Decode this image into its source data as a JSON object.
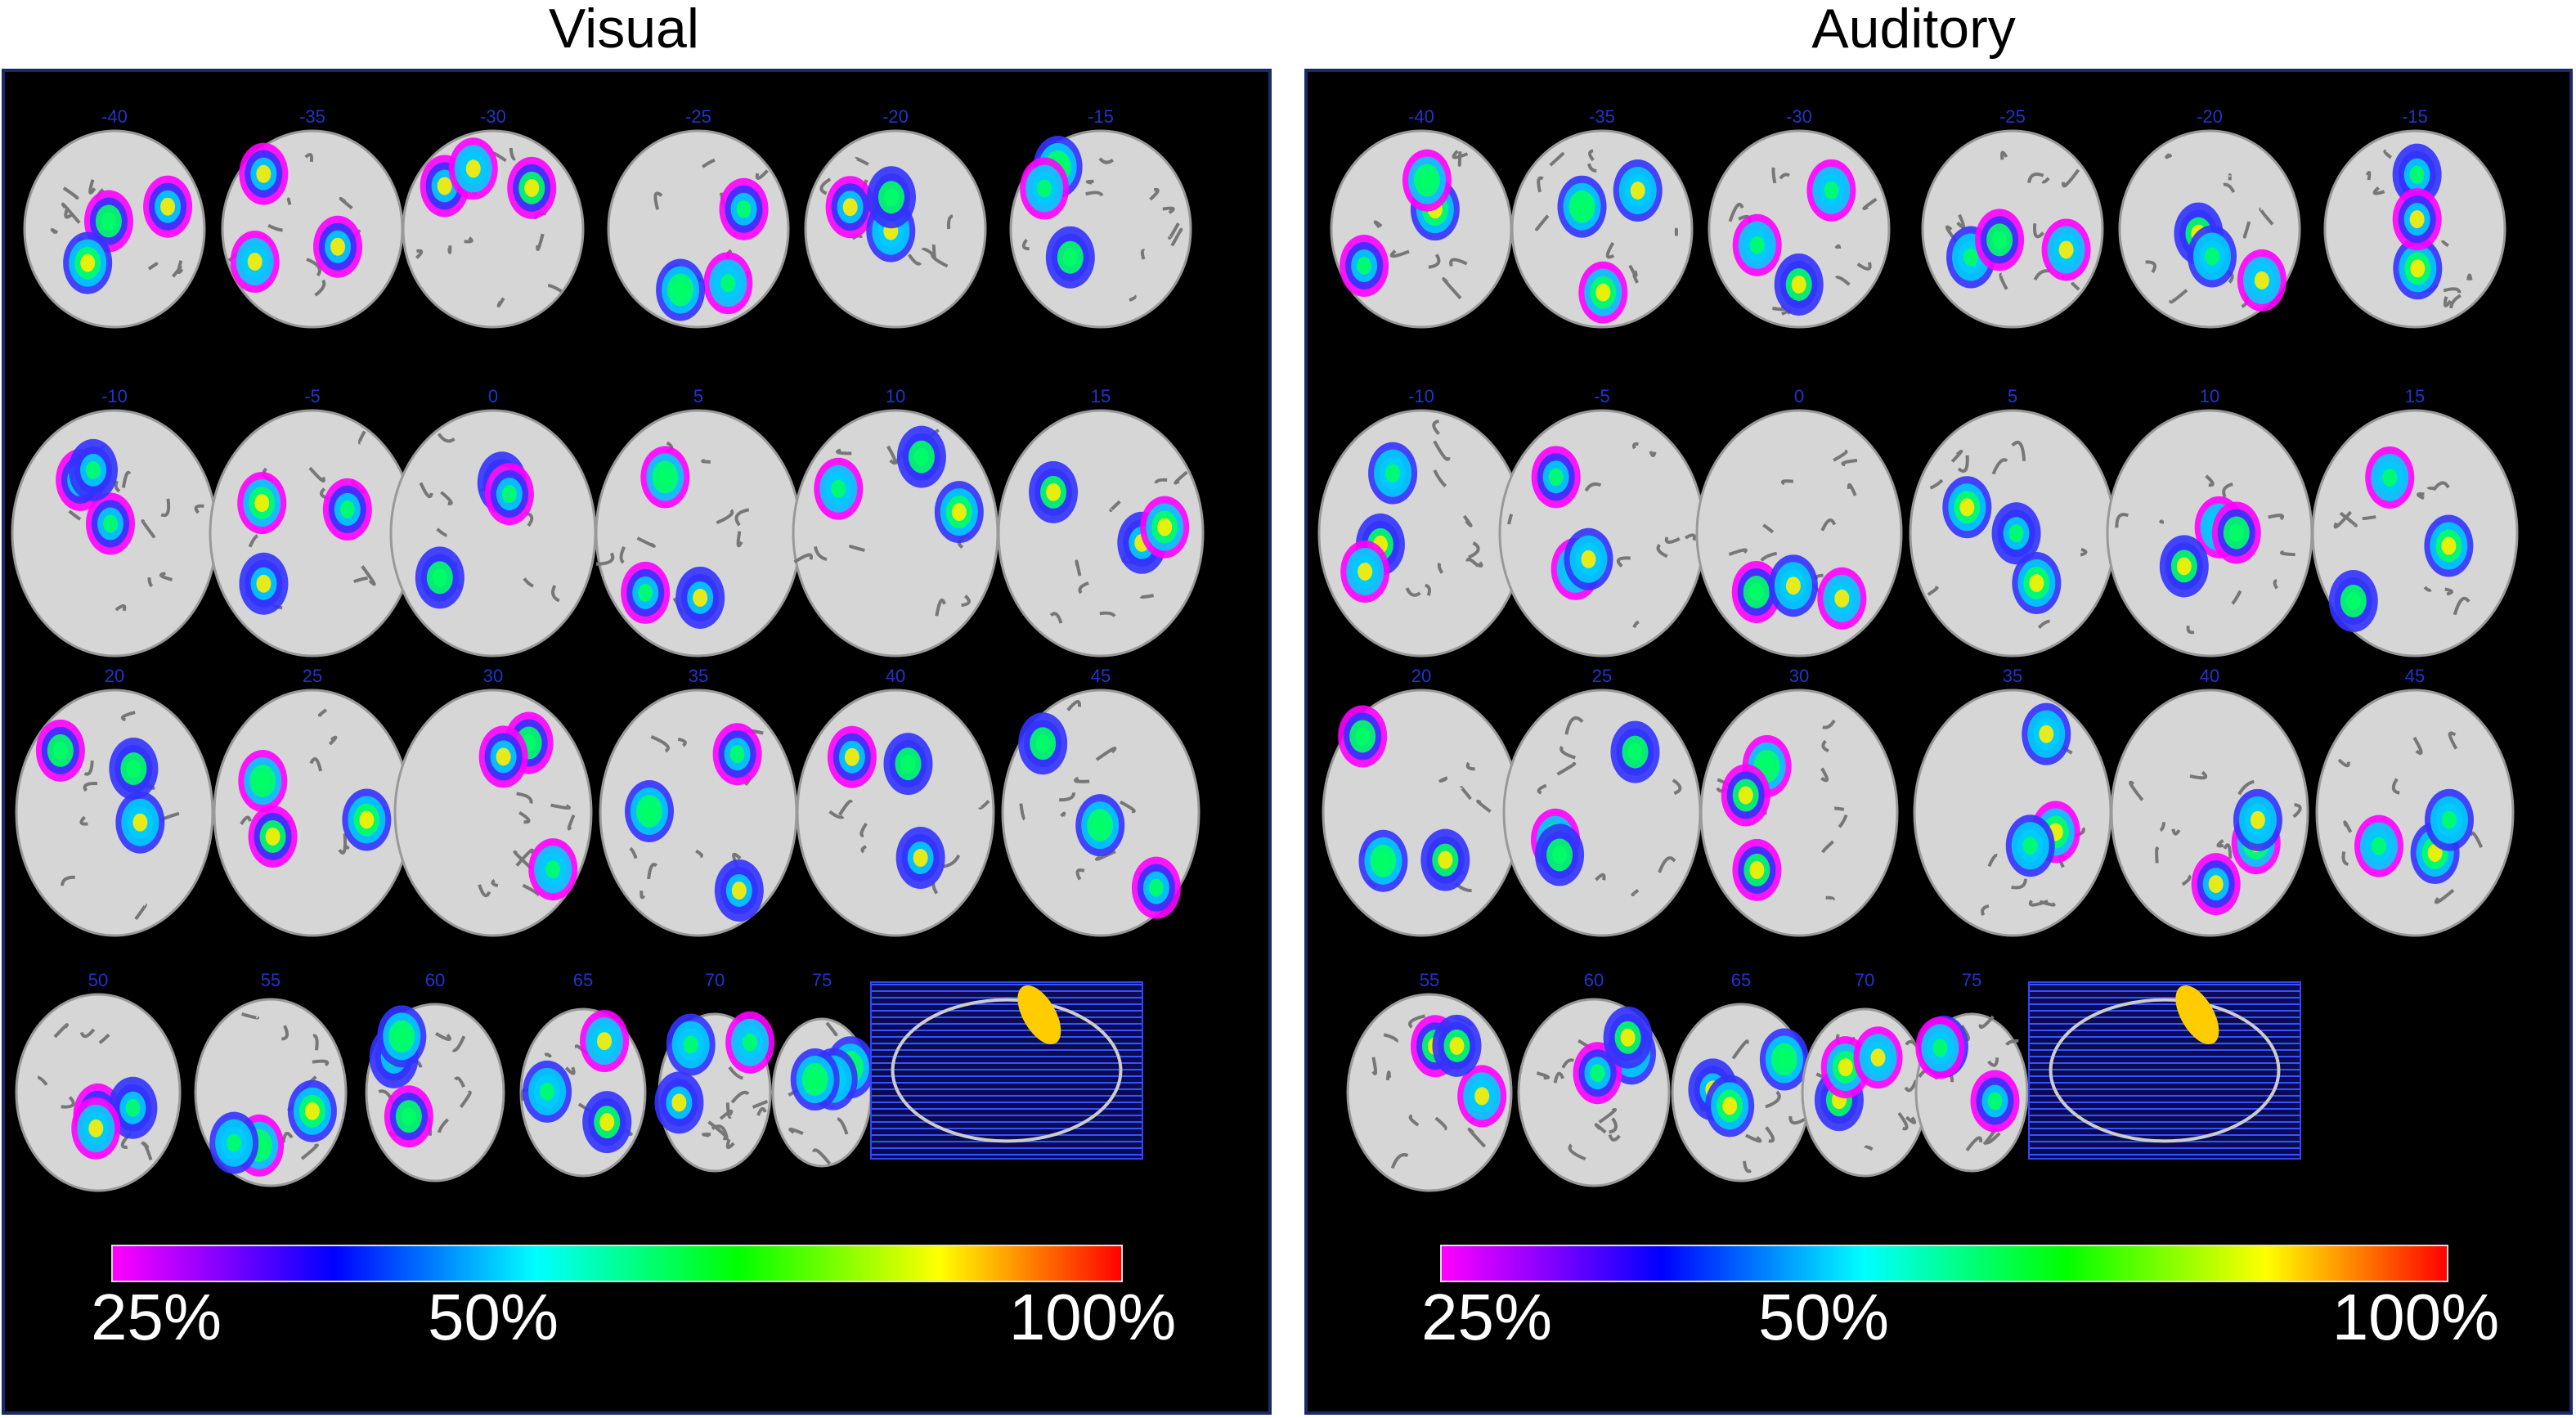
{
  "panels": [
    {
      "title": "Visual",
      "slice_labels": [
        [
          "-40",
          "-35",
          "-30",
          "-25",
          "-20",
          "-15"
        ],
        [
          "-10",
          "-5",
          "0",
          "5",
          "10",
          "15"
        ],
        [
          "20",
          "25",
          "30",
          "35",
          "40",
          "45"
        ],
        [
          "50",
          "55",
          "60",
          "65",
          "70",
          "75"
        ]
      ],
      "colorbar_labels": [
        "25%",
        "50%",
        "100%"
      ]
    },
    {
      "title": "Auditory",
      "slice_labels": [
        [
          "-40",
          "-35",
          "-30",
          "-25",
          "-20",
          "-15"
        ],
        [
          "-10",
          "-5",
          "0",
          "5",
          "10",
          "15"
        ],
        [
          "20",
          "25",
          "30",
          "35",
          "40",
          "45"
        ],
        [
          "55",
          "60",
          "65",
          "70",
          "75"
        ]
      ],
      "colorbar_labels": [
        "25%",
        "50%",
        "100%"
      ]
    }
  ]
}
